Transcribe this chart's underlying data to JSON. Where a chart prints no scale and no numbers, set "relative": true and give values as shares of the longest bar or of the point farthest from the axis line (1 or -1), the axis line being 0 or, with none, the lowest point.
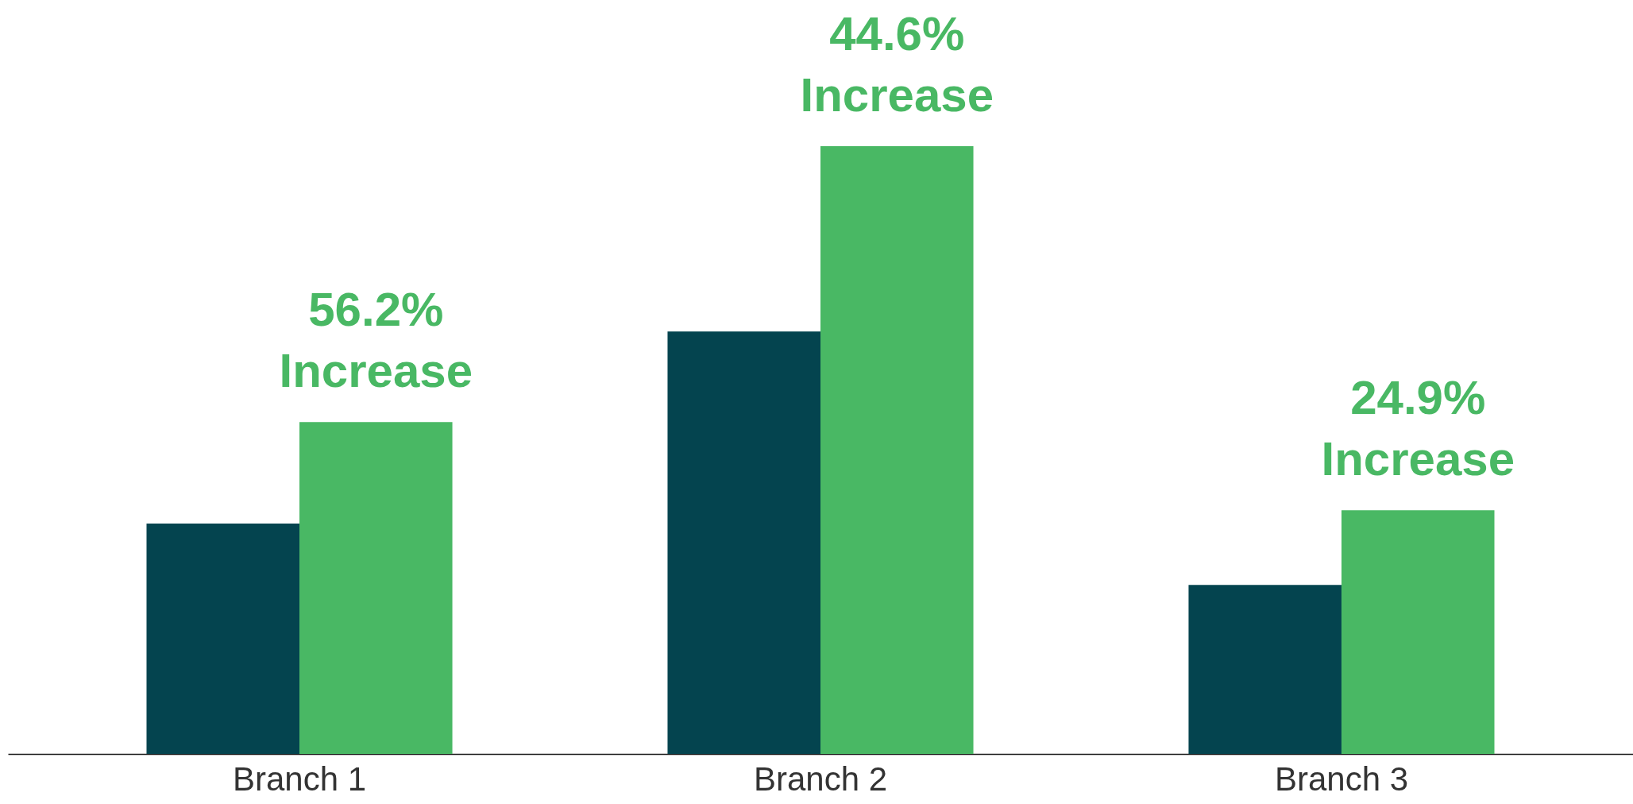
{
  "chart_data": {
    "type": "bar",
    "relative": true,
    "categories": [
      "Branch 1",
      "Branch 2",
      "Branch 3"
    ],
    "series": [
      {
        "color": "#04444f",
        "values": [
          0.379,
          0.695,
          0.278
        ]
      },
      {
        "color": "#49b864",
        "values": [
          0.546,
          1,
          0.401
        ]
      }
    ],
    "annotations": [
      {
        "text": "56.2% Increase",
        "x": "Branch 1",
        "y": 0.546
      },
      {
        "text": "44.6% Increase",
        "x": "Branch 2",
        "y": 1
      },
      {
        "text": "24.9% Increase",
        "x": "Branch 3",
        "y": 0.401
      }
    ]
  }
}
